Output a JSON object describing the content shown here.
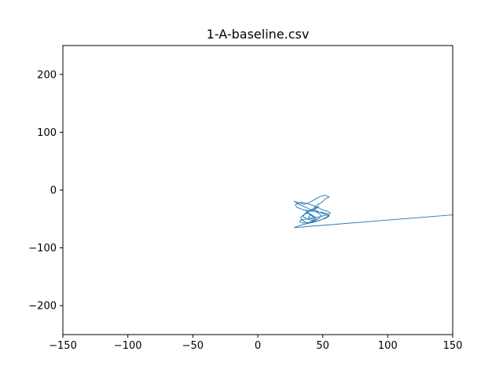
{
  "chart_data": {
    "type": "line",
    "title": "1-A-baseline.csv",
    "xlabel": "",
    "ylabel": "",
    "xlim": [
      -150,
      150
    ],
    "ylim": [
      -250,
      250
    ],
    "xticks": [
      -150,
      -100,
      -50,
      0,
      50,
      100,
      150
    ],
    "xtick_labels": [
      "−150",
      "−100",
      "−50",
      "0",
      "50",
      "100",
      "150"
    ],
    "yticks": [
      -200,
      -100,
      0,
      100,
      200
    ],
    "ytick_labels": [
      "−200",
      "−100",
      "0",
      "100",
      "200"
    ],
    "grid": false,
    "legend": "none",
    "series": [
      {
        "color": "#1f77b4",
        "x": [
          150,
          28,
          30,
          34,
          38,
          44,
          48,
          52,
          55,
          53,
          47,
          41,
          35,
          30,
          29,
          33,
          38,
          43,
          48,
          51,
          54,
          56,
          53,
          48,
          42,
          37,
          33,
          32,
          35,
          40,
          46,
          52,
          55,
          52,
          47,
          43,
          44,
          47,
          50,
          52,
          55,
          52,
          48,
          44,
          40,
          36,
          30,
          28,
          31,
          36,
          41,
          46,
          49,
          47,
          42,
          38,
          34,
          33,
          36,
          40,
          45,
          47,
          44,
          39,
          36,
          35,
          38,
          42,
          45,
          43,
          39,
          37,
          38,
          41,
          44,
          42,
          39,
          41
        ],
        "y": [
          -43,
          -65,
          -63,
          -60,
          -58,
          -55,
          -52,
          -48,
          -44,
          -40,
          -38,
          -36,
          -34,
          -30,
          -25,
          -21,
          -23,
          -27,
          -32,
          -35,
          -37,
          -40,
          -43,
          -46,
          -48,
          -50,
          -52,
          -55,
          -57,
          -56,
          -53,
          -49,
          -45,
          -42,
          -38,
          -33,
          -28,
          -24,
          -20,
          -15,
          -12,
          -9,
          -11,
          -16,
          -21,
          -25,
          -21,
          -19,
          -24,
          -29,
          -34,
          -39,
          -44,
          -49,
          -54,
          -57,
          -52,
          -47,
          -42,
          -37,
          -32,
          -28,
          -31,
          -36,
          -41,
          -46,
          -50,
          -53,
          -50,
          -45,
          -40,
          -36,
          -39,
          -44,
          -48,
          -51,
          -47,
          -43
        ]
      }
    ]
  }
}
